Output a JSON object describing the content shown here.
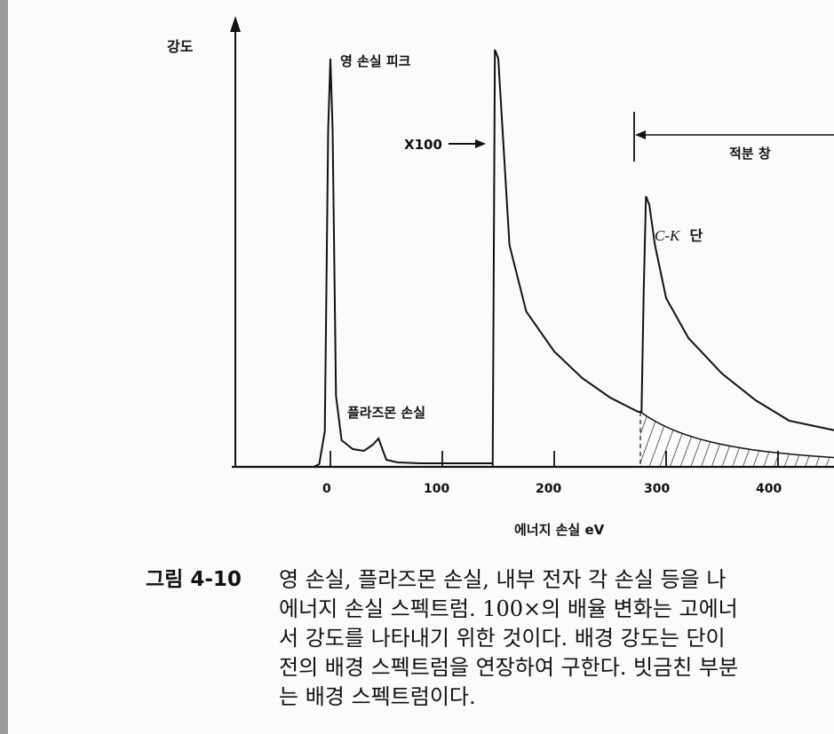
{
  "figure": {
    "ylabel": "강도",
    "xlabel": "에너지 손실 eV",
    "annotations": {
      "zero_loss": "영 손실 피크",
      "plasmon": "플라즈몬 손실",
      "scale": "X100",
      "window": "적분 창",
      "edge_prefix": "C-K",
      "edge_suffix": "단"
    },
    "xticks": [
      "0",
      "100",
      "200",
      "300",
      "400"
    ]
  },
  "caption": {
    "label": "그림 4-10",
    "lines": [
      "영 손실, 플라즈몬 손실, 내부 전자 각 손실 등을 나",
      "에너지 손실 스펙트럼. 100×의 배율 변화는 고에너",
      "서 강도를 나타내기 위한 것이다. 배경 강도는 단이",
      "전의 배경 스펙트럼을 연장하여 구한다. 빗금친 부분",
      "는 배경 스펙트럼이다."
    ]
  },
  "chart_data": {
    "type": "line",
    "title": "",
    "xlabel": "에너지 손실 eV",
    "ylabel": "강도",
    "xlim": [
      -80,
      455
    ],
    "xticks": [
      0,
      100,
      200,
      300,
      400
    ],
    "series": [
      {
        "x": [
          -15,
          -10,
          -5,
          -2,
          0,
          2,
          5,
          10,
          15,
          20,
          30,
          38,
          43,
          47,
          50,
          60,
          80,
          100,
          145
        ],
        "y": [
          0,
          3,
          40,
          380,
          460,
          380,
          80,
          30,
          25,
          20,
          18,
          25,
          32,
          18,
          8,
          5,
          4,
          4,
          4
        ]
      },
      {
        "x": [
          145,
          147,
          150,
          160,
          175,
          200,
          225,
          250,
          275,
          278,
          280,
          282,
          285,
          290,
          300,
          320,
          350,
          380,
          410,
          455
        ],
        "y": [
          0,
          470,
          460,
          250,
          175,
          130,
          100,
          78,
          62,
          62,
          200,
          305,
          295,
          250,
          190,
          145,
          105,
          75,
          52,
          40
        ]
      }
    ],
    "background_region": {
      "x_start": 277,
      "x_end": 455
    }
  }
}
